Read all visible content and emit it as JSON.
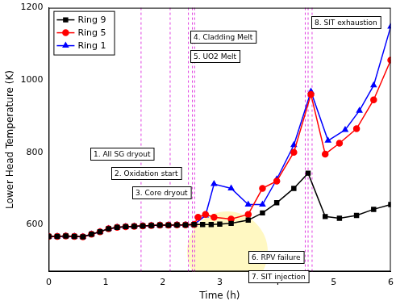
{
  "chart_data": {
    "type": "line",
    "x_label": "Time (h)",
    "y_label": "Lower Head Temperature (K)",
    "xlim": [
      0,
      6
    ],
    "xticks": [
      0,
      1,
      2,
      3,
      4,
      5,
      6
    ],
    "ylim": [
      470,
      1200
    ],
    "yticks": [
      600,
      800,
      1000,
      1200
    ],
    "grid": false,
    "legend": "upper left",
    "series": [
      {
        "name": "Ring 9",
        "color": "#000000",
        "marker": "square",
        "x": [
          0,
          0.15,
          0.3,
          0.45,
          0.6,
          0.75,
          0.9,
          1.05,
          1.2,
          1.35,
          1.5,
          1.65,
          1.8,
          1.95,
          2.1,
          2.25,
          2.4,
          2.55,
          2.7,
          2.85,
          3.0,
          3.2,
          3.5,
          3.75,
          4.0,
          4.3,
          4.55,
          4.85,
          5.1,
          5.4,
          5.7,
          6.0
        ],
        "values": [
          567,
          567,
          568,
          567,
          566,
          573,
          580,
          588,
          592,
          594,
          595,
          596,
          597,
          598,
          598,
          599,
          599,
          600,
          600,
          600,
          601,
          603,
          612,
          632,
          660,
          700,
          742,
          622,
          617,
          625,
          642,
          655
        ]
      },
      {
        "name": "Ring 5",
        "color": "#ff0000",
        "marker": "circle",
        "x": [
          0,
          0.15,
          0.3,
          0.45,
          0.6,
          0.75,
          0.9,
          1.05,
          1.2,
          1.35,
          1.5,
          1.65,
          1.8,
          1.95,
          2.1,
          2.25,
          2.4,
          2.55,
          2.62,
          2.75,
          2.9,
          3.2,
          3.5,
          3.75,
          4.0,
          4.3,
          4.6,
          4.85,
          5.1,
          5.4,
          5.7,
          6.0
        ],
        "values": [
          567,
          567,
          568,
          567,
          566,
          573,
          580,
          588,
          592,
          594,
          595,
          596,
          597,
          598,
          598,
          599,
          599,
          600,
          620,
          628,
          620,
          615,
          628,
          700,
          720,
          800,
          960,
          795,
          825,
          865,
          945,
          1055
        ]
      },
      {
        "name": "Ring 1",
        "color": "#0000ff",
        "marker": "triangle",
        "x": [
          0,
          0.15,
          0.3,
          0.45,
          0.6,
          0.75,
          0.9,
          1.05,
          1.2,
          1.35,
          1.5,
          1.65,
          1.8,
          1.95,
          2.1,
          2.25,
          2.4,
          2.55,
          2.75,
          2.9,
          3.2,
          3.5,
          3.75,
          4.0,
          4.3,
          4.6,
          4.9,
          5.2,
          5.45,
          5.7,
          6.0
        ],
        "values": [
          567,
          567,
          568,
          567,
          566,
          573,
          580,
          588,
          592,
          594,
          595,
          596,
          597,
          598,
          598,
          599,
          599,
          600,
          625,
          712,
          700,
          655,
          655,
          725,
          820,
          968,
          832,
          862,
          915,
          985,
          1148
        ]
      }
    ],
    "annotations": [
      {
        "text": "1. All SG dryout",
        "x": 1.62
      },
      {
        "text": "2. Oxidation start",
        "x": 2.13
      },
      {
        "text": "3. Core dryout",
        "x": 2.45
      },
      {
        "text": "4. Cladding Melt",
        "x": 2.52
      },
      {
        "text": "5. UO2 Melt",
        "x": 2.56
      },
      {
        "text": "6. RPV failure",
        "x": 4.5
      },
      {
        "text": "7. SIT injection",
        "x": 4.55
      },
      {
        "text": "8. SIT exhaustion",
        "x": 4.62
      }
    ]
  }
}
